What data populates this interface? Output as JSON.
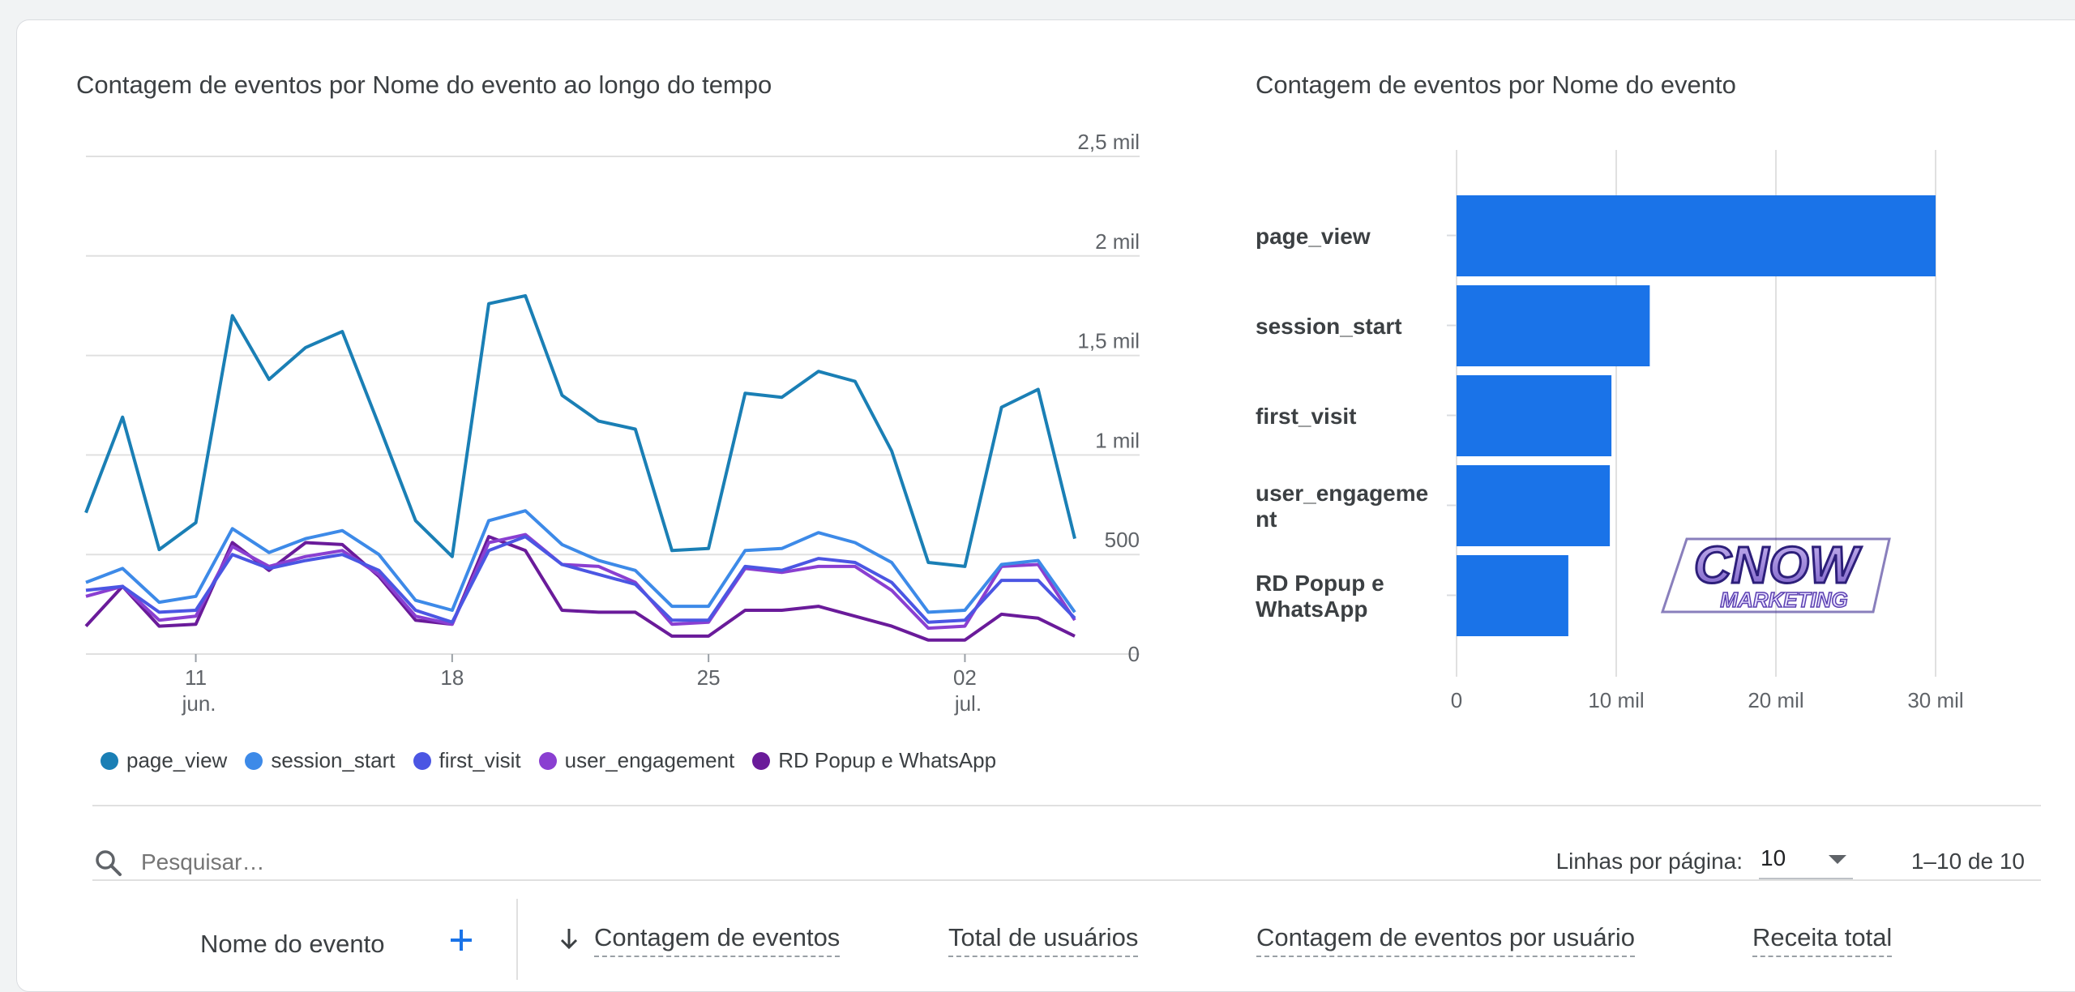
{
  "line_chart": {
    "title": "Contagem de eventos por Nome do evento ao longo do tempo",
    "y_tick_labels": [
      "2,5 mil",
      "2 mil",
      "1,5 mil",
      "1 mil",
      "500",
      "0"
    ],
    "x_ticks": [
      {
        "day": "11",
        "month": "jun.",
        "index": 3
      },
      {
        "day": "18",
        "month": "",
        "index": 10
      },
      {
        "day": "25",
        "month": "",
        "index": 17
      },
      {
        "day": "02",
        "month": "jul.",
        "index": 24
      }
    ]
  },
  "bar_chart": {
    "title": "Contagem de eventos por Nome do evento",
    "x_tick_labels": [
      "0",
      "10 mil",
      "20 mil",
      "30 mil"
    ]
  },
  "chart_data": [
    {
      "type": "line",
      "title": "Contagem de eventos por Nome do evento ao longo do tempo",
      "ylim": [
        0,
        2500
      ],
      "grid": true,
      "legend": "bottom",
      "x": [
        "08 jun.",
        "09 jun.",
        "10 jun.",
        "11 jun.",
        "12 jun.",
        "13 jun.",
        "14 jun.",
        "15 jun.",
        "16 jun.",
        "17 jun.",
        "18 jun.",
        "19 jun.",
        "20 jun.",
        "21 jun.",
        "22 jun.",
        "23 jun.",
        "24 jun.",
        "25 jun.",
        "26 jun.",
        "27 jun.",
        "28 jun.",
        "29 jun.",
        "30 jun.",
        "01 jul.",
        "02 jul.",
        "03 jul.",
        "04 jul.",
        "05 jul."
      ],
      "series": [
        {
          "name": "page_view",
          "color": "#1a7fb5",
          "values": [
            710,
            1190,
            525,
            660,
            1700,
            1380,
            1540,
            1620,
            1150,
            670,
            490,
            1760,
            1800,
            1300,
            1170,
            1130,
            520,
            530,
            1310,
            1290,
            1420,
            1370,
            1020,
            460,
            440,
            1240,
            1330,
            580
          ]
        },
        {
          "name": "session_start",
          "color": "#3d8ae8",
          "values": [
            360,
            430,
            260,
            290,
            630,
            510,
            580,
            620,
            500,
            270,
            220,
            670,
            720,
            550,
            470,
            420,
            240,
            240,
            520,
            530,
            610,
            560,
            460,
            210,
            220,
            450,
            470,
            210
          ]
        },
        {
          "name": "first_visit",
          "color": "#4b56e3",
          "values": [
            320,
            340,
            210,
            220,
            500,
            430,
            470,
            500,
            420,
            220,
            160,
            520,
            590,
            450,
            400,
            350,
            170,
            170,
            440,
            420,
            480,
            460,
            360,
            160,
            170,
            370,
            370,
            180
          ]
        },
        {
          "name": "user_engagement",
          "color": "#8a3fd1",
          "values": [
            290,
            340,
            170,
            190,
            540,
            440,
            490,
            520,
            400,
            190,
            150,
            560,
            600,
            450,
            440,
            360,
            150,
            160,
            430,
            410,
            440,
            440,
            320,
            130,
            140,
            440,
            450,
            170
          ]
        },
        {
          "name": "RD Popup e WhatsApp",
          "color": "#6a1b9a",
          "values": [
            140,
            340,
            140,
            150,
            560,
            420,
            560,
            550,
            390,
            170,
            150,
            590,
            520,
            220,
            210,
            210,
            90,
            90,
            220,
            220,
            240,
            190,
            140,
            70,
            70,
            200,
            180,
            90
          ]
        }
      ]
    },
    {
      "type": "bar",
      "orientation": "horizontal",
      "title": "Contagem de eventos por Nome do evento",
      "categories": [
        "page_view",
        "session_start",
        "first_visit",
        "user_engageme nt",
        "RD Popup e WhatsApp"
      ],
      "values": [
        30000,
        12100,
        9700,
        9600,
        7000
      ],
      "xlim": [
        0,
        32000
      ],
      "color": "#1a73e8",
      "grid": true
    }
  ],
  "watermark": {
    "text_top": "CNOW",
    "text_bottom": "MARKETING"
  },
  "toolbar": {
    "search_placeholder": "Pesquisar…",
    "rows_label": "Linhas por página:",
    "rows_value": "10",
    "pagination": "1–10 de 10"
  },
  "table": {
    "headers": {
      "event_name": "Nome do evento",
      "event_count": "Contagem de eventos",
      "total_users": "Total de usuários",
      "events_per_user": "Contagem de eventos por usuário",
      "total_revenue": "Receita total"
    },
    "add_icon": "plus-icon",
    "sort_icon": "arrow-down-icon"
  },
  "colors": {
    "accent": "#1a73e8",
    "bar": "#1a73e8",
    "grid": "#e0e0e0"
  }
}
